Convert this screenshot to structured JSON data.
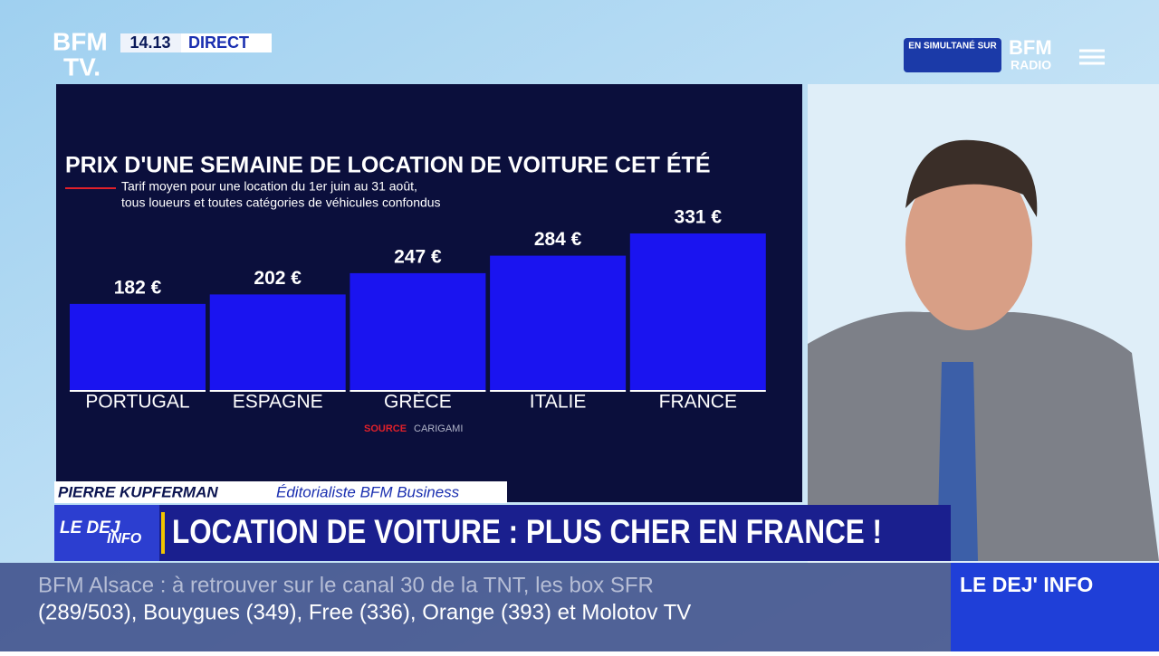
{
  "chart_data": {
    "type": "bar",
    "title": "PRIX D'UNE SEMAINE DE LOCATION DE VOITURE CET ÉTÉ",
    "subtitle": [
      "Tarif moyen pour une location du 1er juin au 31 août,",
      "tous loueurs et toutes catégories de véhicules confondus"
    ],
    "categories": [
      "PORTUGAL",
      "ESPAGNE",
      "GRÈCE",
      "ITALIE",
      "FRANCE"
    ],
    "values": [
      182,
      202,
      247,
      284,
      331
    ],
    "value_labels": [
      "182 €",
      "202 €",
      "247 €",
      "284 €",
      "331 €"
    ],
    "color": "#1a14f0",
    "source": {
      "label": "SOURCE",
      "name": "CARIGAMI"
    }
  },
  "overlay": {
    "logo": [
      "BFM",
      "TV."
    ],
    "time": "14.13",
    "live": "DIRECT",
    "radio": {
      "caption": "EN SIMULTANÉ SUR",
      "logo": [
        "BFM",
        "RADIO"
      ]
    },
    "speaker": {
      "name": "PIERRE KUPFERMAN",
      "role": "Éditorialiste BFM Business"
    },
    "show_logo": [
      "LE DEJ",
      "INFO"
    ],
    "headline": "LOCATION DE VOITURE : PLUS CHER EN FRANCE !",
    "ticker": [
      "BFM Alsace : à retrouver sur le canal 30 de la TNT, les box SFR",
      "(289/503), Bouygues (349), Free (336), Orange (393) et Molotov TV"
    ],
    "show_name": "LE DEJ' INFO"
  }
}
